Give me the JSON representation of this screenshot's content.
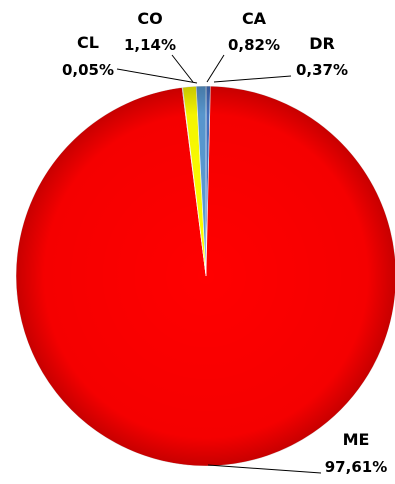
{
  "chart_data": {
    "type": "pie",
    "title": "",
    "legend": "none",
    "slices": [
      {
        "name": "DR",
        "value": 0.37,
        "label": "0,37%",
        "color": "#4472C4"
      },
      {
        "name": "ME",
        "value": 97.61,
        "label": "97,61%",
        "color": "#FF0000"
      },
      {
        "name": "CL",
        "value": 0.05,
        "label": "0,05%",
        "color": "#00B050"
      },
      {
        "name": "CO",
        "value": 1.14,
        "label": "1,14%",
        "color": "#FFFF00"
      },
      {
        "name": "CA",
        "value": 0.82,
        "label": "0,82%",
        "color": "#5B9BD5"
      }
    ]
  }
}
